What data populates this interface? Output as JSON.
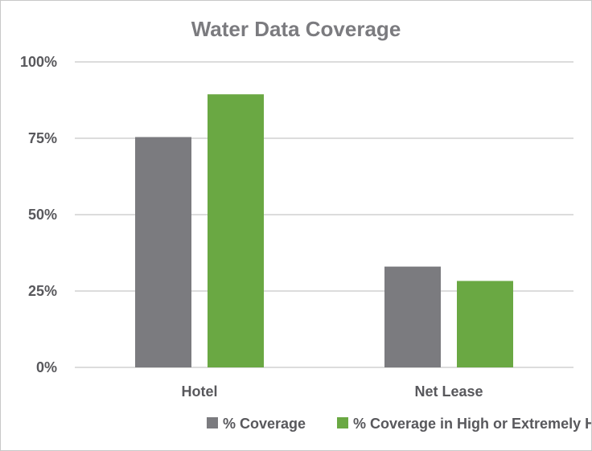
{
  "chart_data": {
    "type": "bar",
    "title": "Water Data Coverage",
    "xlabel": "",
    "ylabel": "",
    "categories": [
      "Hotel",
      "Net Lease"
    ],
    "series": [
      {
        "name": "% Coverage",
        "values": [
          75.4,
          33.0
        ],
        "color": "#7b7b7f"
      },
      {
        "name": "% Coverage in High or Extremely High BWS",
        "values": [
          89.4,
          28.3
        ],
        "color": "#6aa843"
      }
    ],
    "ylim": [
      0,
      100
    ],
    "yticks": [
      0,
      25,
      50,
      75,
      100
    ],
    "ytick_labels": [
      "0%",
      "25%",
      "50%",
      "75%",
      "100%"
    ],
    "grid": true,
    "gridline_color": "#d0d0d0",
    "legend_position": "bottom"
  }
}
